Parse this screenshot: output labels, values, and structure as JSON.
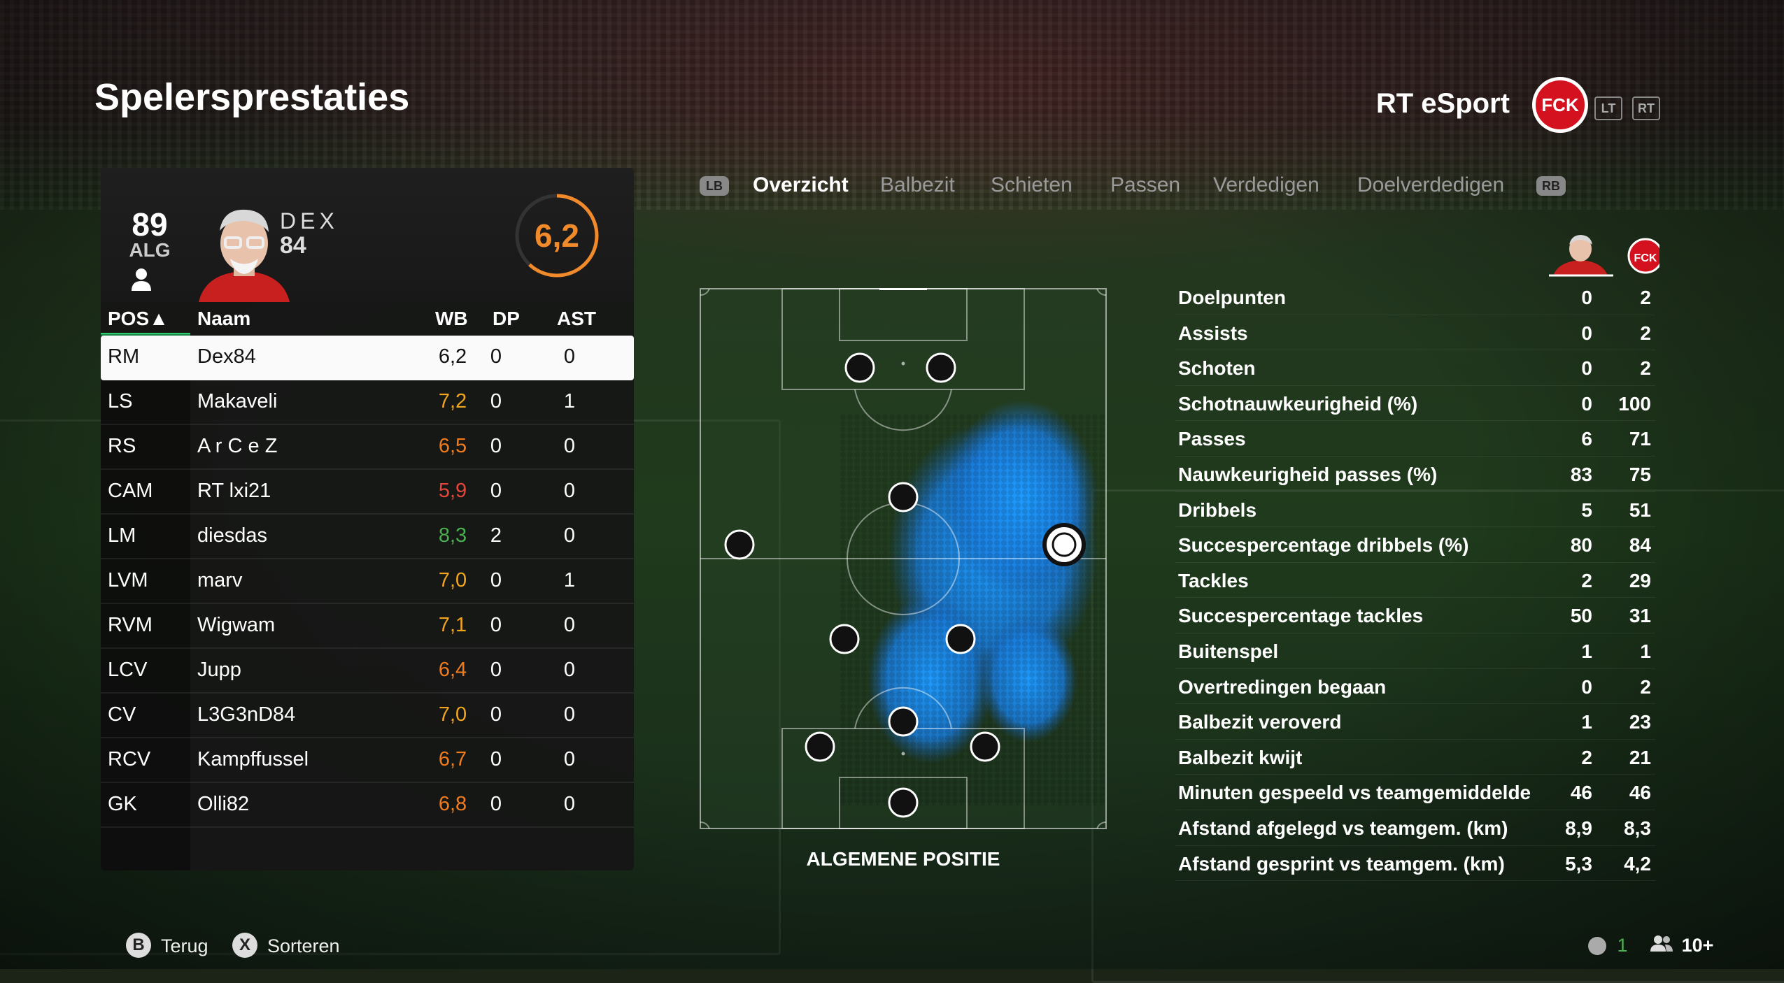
{
  "header": {
    "title": "Spelersprestaties",
    "team_name": "RT eSport",
    "club_logo_text": "FCK",
    "lt_label": "LT",
    "rt_label": "RT"
  },
  "player": {
    "overall": "89",
    "overall_label": "ALG",
    "name": "DEX",
    "rating": "84",
    "match_rating": "6,2"
  },
  "table": {
    "headers": {
      "pos": "POS▲",
      "name": "Naam",
      "wb": "WB",
      "dp": "DP",
      "ast": "AST"
    },
    "rows": [
      {
        "pos": "RM",
        "name": "Dex84",
        "wb": "6,2",
        "dp": "0",
        "ast": "0",
        "color": "#111111"
      },
      {
        "pos": "LS",
        "name": "Makaveli",
        "wb": "7,2",
        "dp": "0",
        "ast": "1",
        "color": "#f0a51e"
      },
      {
        "pos": "RS",
        "name": "A r C e Z",
        "wb": "6,5",
        "dp": "0",
        "ast": "0",
        "color": "#f07c1e"
      },
      {
        "pos": "CAM",
        "name": "RT lxi21",
        "wb": "5,9",
        "dp": "0",
        "ast": "0",
        "color": "#e8453a"
      },
      {
        "pos": "LM",
        "name": "diesdas",
        "wb": "8,3",
        "dp": "2",
        "ast": "0",
        "color": "#4caf50"
      },
      {
        "pos": "LVM",
        "name": "marv",
        "wb": "7,0",
        "dp": "0",
        "ast": "1",
        "color": "#f0a51e"
      },
      {
        "pos": "RVM",
        "name": "Wigwam",
        "wb": "7,1",
        "dp": "0",
        "ast": "0",
        "color": "#f0a51e"
      },
      {
        "pos": "LCV",
        "name": "Jupp",
        "wb": "6,4",
        "dp": "0",
        "ast": "0",
        "color": "#f07c1e"
      },
      {
        "pos": "CV",
        "name": "L3G3nD84",
        "wb": "7,0",
        "dp": "0",
        "ast": "0",
        "color": "#f0a51e"
      },
      {
        "pos": "RCV",
        "name": "Kampffussel",
        "wb": "6,7",
        "dp": "0",
        "ast": "0",
        "color": "#f07c1e"
      },
      {
        "pos": "GK",
        "name": "Olli82",
        "wb": "6,8",
        "dp": "0",
        "ast": "0",
        "color": "#f07c1e"
      }
    ]
  },
  "tabs": {
    "lb": "LB",
    "rb": "RB",
    "items": [
      "Overzicht",
      "Balbezit",
      "Schieten",
      "Passen",
      "Verdedigen",
      "Doelverdedigen"
    ],
    "active": "Overzicht"
  },
  "pitch": {
    "label": "ALGEMENE POSITIE"
  },
  "stats": [
    {
      "label": "Doelpunten",
      "player": "0",
      "team": "2"
    },
    {
      "label": "Assists",
      "player": "0",
      "team": "2"
    },
    {
      "label": "Schoten",
      "player": "0",
      "team": "2"
    },
    {
      "label": "Schotnauwkeurigheid (%)",
      "player": "0",
      "team": "100"
    },
    {
      "label": "Passes",
      "player": "6",
      "team": "71"
    },
    {
      "label": "Nauwkeurigheid passes (%)",
      "player": "83",
      "team": "75"
    },
    {
      "label": "Dribbels",
      "player": "5",
      "team": "51"
    },
    {
      "label": "Succespercentage dribbels (%)",
      "player": "80",
      "team": "84"
    },
    {
      "label": "Tackles",
      "player": "2",
      "team": "29"
    },
    {
      "label": "Succespercentage tackles",
      "player": "50",
      "team": "31"
    },
    {
      "label": "Buitenspel",
      "player": "1",
      "team": "1"
    },
    {
      "label": "Overtredingen begaan",
      "player": "0",
      "team": "2"
    },
    {
      "label": "Balbezit veroverd",
      "player": "1",
      "team": "23"
    },
    {
      "label": "Balbezit kwijt",
      "player": "2",
      "team": "21"
    },
    {
      "label": "Minuten gespeeld vs teamgemiddelde",
      "player": "46",
      "team": "46"
    },
    {
      "label": "Afstand afgelegd vs teamgem. (km)",
      "player": "8,9",
      "team": "8,3"
    },
    {
      "label": "Afstand gesprint vs teamgem. (km)",
      "player": "5,3",
      "team": "4,2"
    }
  ],
  "footer": {
    "back_key": "B",
    "back_label": "Terug",
    "sort_key": "X",
    "sort_label": "Sorteren",
    "count": "1",
    "players": "10+"
  },
  "colors": {
    "accent_orange": "#f08a2a",
    "accent_green": "#2ecc71",
    "heatmap": "#1e90ff"
  }
}
